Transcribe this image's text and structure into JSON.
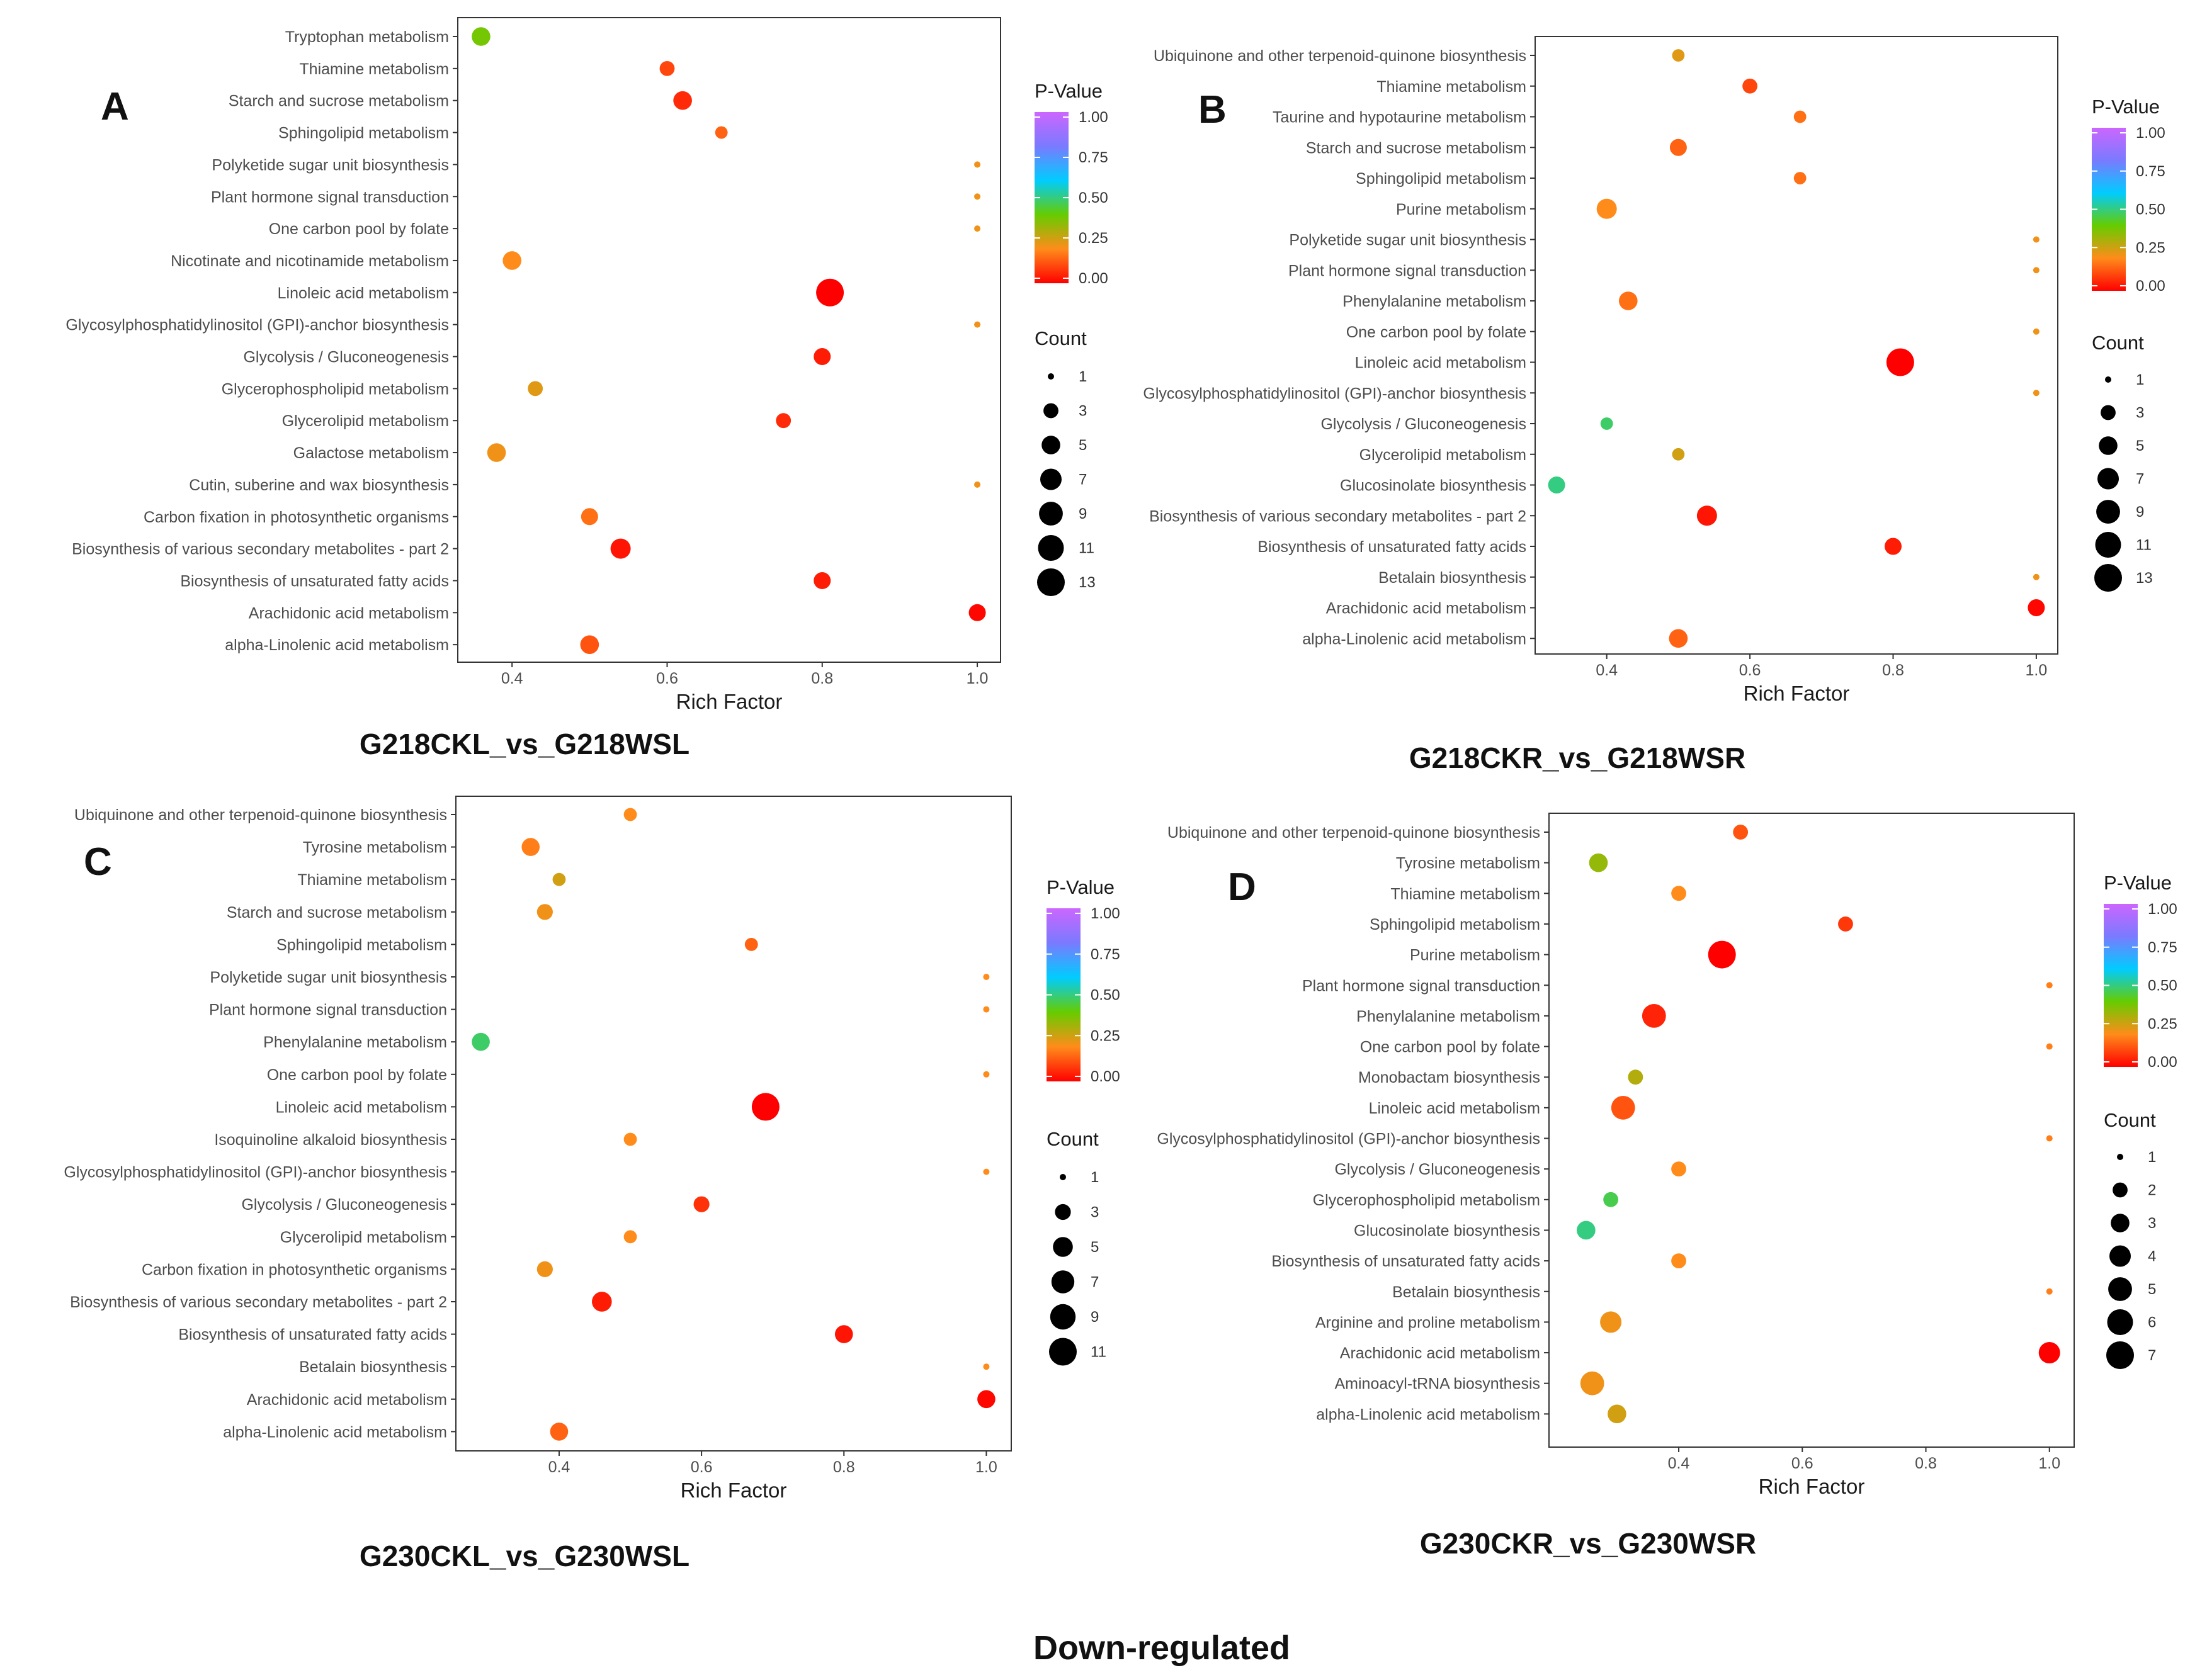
{
  "footer": "Down-regulated",
  "colorscale": {
    "stops": [
      "#ff0000",
      "#ff8c1a",
      "#66cc00",
      "#00ccff",
      "#7a7aff",
      "#cc66ff"
    ]
  },
  "chart_data": [
    {
      "panel_label": "A",
      "type": "scatter",
      "caption": "G218CKL_vs_G218WSL",
      "xlabel": "Rich Factor",
      "xticks": [
        0.4,
        0.6,
        0.8,
        1.0
      ],
      "xtick_labels": [
        "0.4",
        "0.6",
        "0.8",
        "1.0"
      ],
      "xlim": [
        0.33,
        1.03
      ],
      "color_legend": {
        "title": "P-Value",
        "ticks": [
          "1.00",
          "0.75",
          "0.50",
          "0.25",
          "0.00"
        ]
      },
      "size_legend": {
        "title": "Count",
        "values": [
          1,
          3,
          5,
          7,
          9,
          11,
          13
        ]
      },
      "points": [
        {
          "pathway": "Tryptophan metabolism",
          "rich_factor": 0.36,
          "count": 5,
          "p_value": 0.38
        },
        {
          "pathway": "Thiamine metabolism",
          "rich_factor": 0.6,
          "count": 3,
          "p_value": 0.1
        },
        {
          "pathway": "Starch and sucrose metabolism",
          "rich_factor": 0.62,
          "count": 5,
          "p_value": 0.06
        },
        {
          "pathway": "Sphingolipid metabolism",
          "rich_factor": 0.67,
          "count": 2,
          "p_value": 0.14
        },
        {
          "pathway": "Polyketide sugar unit biosynthesis",
          "rich_factor": 1.0,
          "count": 1,
          "p_value": 0.22
        },
        {
          "pathway": "Plant hormone signal transduction",
          "rich_factor": 1.0,
          "count": 1,
          "p_value": 0.22
        },
        {
          "pathway": "One carbon pool by folate",
          "rich_factor": 1.0,
          "count": 1,
          "p_value": 0.22
        },
        {
          "pathway": "Nicotinate and nicotinamide metabolism",
          "rich_factor": 0.4,
          "count": 5,
          "p_value": 0.2
        },
        {
          "pathway": "Linoleic acid metabolism",
          "rich_factor": 0.81,
          "count": 13,
          "p_value": 0.0
        },
        {
          "pathway": "Glycosylphosphatidylinositol (GPI)-anchor biosynthesis",
          "rich_factor": 1.0,
          "count": 1,
          "p_value": 0.22
        },
        {
          "pathway": "Glycolysis / Gluconeogenesis",
          "rich_factor": 0.8,
          "count": 4,
          "p_value": 0.04
        },
        {
          "pathway": "Glycerophospholipid metabolism",
          "rich_factor": 0.43,
          "count": 3,
          "p_value": 0.24
        },
        {
          "pathway": "Glycerolipid metabolism",
          "rich_factor": 0.75,
          "count": 3,
          "p_value": 0.06
        },
        {
          "pathway": "Galactose metabolism",
          "rich_factor": 0.38,
          "count": 5,
          "p_value": 0.22
        },
        {
          "pathway": "Cutin, suberine and wax biosynthesis",
          "rich_factor": 1.0,
          "count": 1,
          "p_value": 0.22
        },
        {
          "pathway": "Carbon fixation in photosynthetic organisms",
          "rich_factor": 0.5,
          "count": 4,
          "p_value": 0.16
        },
        {
          "pathway": "Biosynthesis of various secondary metabolites - part 2",
          "rich_factor": 0.54,
          "count": 6,
          "p_value": 0.03
        },
        {
          "pathway": "Biosynthesis of unsaturated fatty acids",
          "rich_factor": 0.8,
          "count": 4,
          "p_value": 0.04
        },
        {
          "pathway": "Arachidonic acid metabolism",
          "rich_factor": 1.0,
          "count": 4,
          "p_value": 0.01
        },
        {
          "pathway": "alpha-Linolenic acid metabolism",
          "rich_factor": 0.5,
          "count": 5,
          "p_value": 0.12
        }
      ]
    },
    {
      "panel_label": "B",
      "type": "scatter",
      "caption": "G218CKR_vs_G218WSR",
      "xlabel": "Rich Factor",
      "xticks": [
        0.4,
        0.6,
        0.8,
        1.0
      ],
      "xtick_labels": [
        "0.4",
        "0.6",
        "0.8",
        "1.0"
      ],
      "xlim": [
        0.3,
        1.03
      ],
      "color_legend": {
        "title": "P-Value",
        "ticks": [
          "1.00",
          "0.75",
          "0.50",
          "0.25",
          "0.00"
        ]
      },
      "size_legend": {
        "title": "Count",
        "values": [
          1,
          3,
          5,
          7,
          9,
          11,
          13
        ]
      },
      "points": [
        {
          "pathway": "Ubiquinone and other terpenoid-quinone biosynthesis",
          "rich_factor": 0.5,
          "count": 2,
          "p_value": 0.24
        },
        {
          "pathway": "Thiamine metabolism",
          "rich_factor": 0.6,
          "count": 3,
          "p_value": 0.1
        },
        {
          "pathway": "Taurine and hypotaurine metabolism",
          "rich_factor": 0.67,
          "count": 2,
          "p_value": 0.16
        },
        {
          "pathway": "Starch and sucrose metabolism",
          "rich_factor": 0.5,
          "count": 4,
          "p_value": 0.14
        },
        {
          "pathway": "Sphingolipid metabolism",
          "rich_factor": 0.67,
          "count": 2,
          "p_value": 0.16
        },
        {
          "pathway": "Purine metabolism",
          "rich_factor": 0.4,
          "count": 6,
          "p_value": 0.2
        },
        {
          "pathway": "Polyketide sugar unit biosynthesis",
          "rich_factor": 1.0,
          "count": 1,
          "p_value": 0.22
        },
        {
          "pathway": "Plant hormone signal transduction",
          "rich_factor": 1.0,
          "count": 1,
          "p_value": 0.22
        },
        {
          "pathway": "Phenylalanine metabolism",
          "rich_factor": 0.43,
          "count": 5,
          "p_value": 0.16
        },
        {
          "pathway": "One carbon pool by folate",
          "rich_factor": 1.0,
          "count": 1,
          "p_value": 0.22
        },
        {
          "pathway": "Linoleic acid metabolism",
          "rich_factor": 0.81,
          "count": 13,
          "p_value": 0.0
        },
        {
          "pathway": "Glycosylphosphatidylinositol (GPI)-anchor biosynthesis",
          "rich_factor": 1.0,
          "count": 1,
          "p_value": 0.22
        },
        {
          "pathway": "Glycolysis / Gluconeogenesis",
          "rich_factor": 0.4,
          "count": 2,
          "p_value": 0.48
        },
        {
          "pathway": "Glycerolipid metabolism",
          "rich_factor": 0.5,
          "count": 2,
          "p_value": 0.26
        },
        {
          "pathway": "Glucosinolate biosynthesis",
          "rich_factor": 0.33,
          "count": 4,
          "p_value": 0.5
        },
        {
          "pathway": "Biosynthesis of various secondary metabolites - part 2",
          "rich_factor": 0.54,
          "count": 6,
          "p_value": 0.03
        },
        {
          "pathway": "Biosynthesis of unsaturated fatty acids",
          "rich_factor": 0.8,
          "count": 4,
          "p_value": 0.04
        },
        {
          "pathway": "Betalain biosynthesis",
          "rich_factor": 1.0,
          "count": 1,
          "p_value": 0.22
        },
        {
          "pathway": "Arachidonic acid metabolism",
          "rich_factor": 1.0,
          "count": 4,
          "p_value": 0.01
        },
        {
          "pathway": "alpha-Linolenic acid metabolism",
          "rich_factor": 0.5,
          "count": 5,
          "p_value": 0.14
        }
      ]
    },
    {
      "panel_label": "C",
      "type": "scatter",
      "caption": "G230CKL_vs_G230WSL",
      "xlabel": "Rich Factor",
      "xticks": [
        0.4,
        0.6,
        0.8,
        1.0
      ],
      "xtick_labels": [
        "0.4",
        "0.6",
        "0.8",
        "1.0"
      ],
      "xlim": [
        0.255,
        1.035
      ],
      "color_legend": {
        "title": "P-Value",
        "ticks": [
          "1.00",
          "0.75",
          "0.50",
          "0.25",
          "0.00"
        ]
      },
      "size_legend": {
        "title": "Count",
        "values": [
          1,
          3,
          5,
          7,
          9,
          11
        ]
      },
      "points": [
        {
          "pathway": "Ubiquinone and other terpenoid-quinone biosynthesis",
          "rich_factor": 0.5,
          "count": 2,
          "p_value": 0.2
        },
        {
          "pathway": "Tyrosine metabolism",
          "rich_factor": 0.36,
          "count": 4,
          "p_value": 0.18
        },
        {
          "pathway": "Thiamine metabolism",
          "rich_factor": 0.4,
          "count": 2,
          "p_value": 0.26
        },
        {
          "pathway": "Starch and sucrose metabolism",
          "rich_factor": 0.38,
          "count": 3,
          "p_value": 0.22
        },
        {
          "pathway": "Sphingolipid metabolism",
          "rich_factor": 0.67,
          "count": 2,
          "p_value": 0.14
        },
        {
          "pathway": "Polyketide sugar unit biosynthesis",
          "rich_factor": 1.0,
          "count": 1,
          "p_value": 0.2
        },
        {
          "pathway": "Plant hormone signal transduction",
          "rich_factor": 1.0,
          "count": 1,
          "p_value": 0.2
        },
        {
          "pathway": "Phenylalanine metabolism",
          "rich_factor": 0.29,
          "count": 4,
          "p_value": 0.48
        },
        {
          "pathway": "One carbon pool by folate",
          "rich_factor": 1.0,
          "count": 1,
          "p_value": 0.2
        },
        {
          "pathway": "Linoleic acid metabolism",
          "rich_factor": 0.69,
          "count": 11,
          "p_value": 0.0
        },
        {
          "pathway": "Isoquinoline alkaloid biosynthesis",
          "rich_factor": 0.5,
          "count": 2,
          "p_value": 0.2
        },
        {
          "pathway": "Glycosylphosphatidylinositol (GPI)-anchor biosynthesis",
          "rich_factor": 1.0,
          "count": 1,
          "p_value": 0.2
        },
        {
          "pathway": "Glycolysis / Gluconeogenesis",
          "rich_factor": 0.6,
          "count": 3,
          "p_value": 0.07
        },
        {
          "pathway": "Glycerolipid metabolism",
          "rich_factor": 0.5,
          "count": 2,
          "p_value": 0.2
        },
        {
          "pathway": "Carbon fixation in photosynthetic organisms",
          "rich_factor": 0.38,
          "count": 3,
          "p_value": 0.22
        },
        {
          "pathway": "Biosynthesis of various secondary metabolites - part 2",
          "rich_factor": 0.46,
          "count": 5,
          "p_value": 0.04
        },
        {
          "pathway": "Biosynthesis of unsaturated fatty acids",
          "rich_factor": 0.8,
          "count": 4,
          "p_value": 0.03
        },
        {
          "pathway": "Betalain biosynthesis",
          "rich_factor": 1.0,
          "count": 1,
          "p_value": 0.2
        },
        {
          "pathway": "Arachidonic acid metabolism",
          "rich_factor": 1.0,
          "count": 4,
          "p_value": 0.01
        },
        {
          "pathway": "alpha-Linolenic acid metabolism",
          "rich_factor": 0.4,
          "count": 4,
          "p_value": 0.14
        }
      ]
    },
    {
      "panel_label": "D",
      "type": "scatter",
      "caption": "G230CKR_vs_G230WSR",
      "xlabel": "Rich Factor",
      "xticks": [
        0.4,
        0.6,
        0.8,
        1.0
      ],
      "xtick_labels": [
        "0.4",
        "0.6",
        "0.8",
        "1.0"
      ],
      "xlim": [
        0.19,
        1.04
      ],
      "color_legend": {
        "title": "P-Value",
        "ticks": [
          "1.00",
          "0.75",
          "0.50",
          "0.25",
          "0.00"
        ]
      },
      "size_legend": {
        "title": "Count",
        "values": [
          1,
          2,
          3,
          4,
          5,
          6,
          7
        ]
      },
      "points": [
        {
          "pathway": "Ubiquinone and other terpenoid-quinone biosynthesis",
          "rich_factor": 0.5,
          "count": 2,
          "p_value": 0.12
        },
        {
          "pathway": "Tyrosine metabolism",
          "rich_factor": 0.27,
          "count": 3,
          "p_value": 0.34
        },
        {
          "pathway": "Thiamine metabolism",
          "rich_factor": 0.4,
          "count": 2,
          "p_value": 0.2
        },
        {
          "pathway": "Sphingolipid metabolism",
          "rich_factor": 0.67,
          "count": 2,
          "p_value": 0.08
        },
        {
          "pathway": "Purine metabolism",
          "rich_factor": 0.47,
          "count": 7,
          "p_value": 0.0
        },
        {
          "pathway": "Plant hormone signal transduction",
          "rich_factor": 1.0,
          "count": 1,
          "p_value": 0.18
        },
        {
          "pathway": "Phenylalanine metabolism",
          "rich_factor": 0.36,
          "count": 5,
          "p_value": 0.05
        },
        {
          "pathway": "One carbon pool by folate",
          "rich_factor": 1.0,
          "count": 1,
          "p_value": 0.18
        },
        {
          "pathway": "Monobactam biosynthesis",
          "rich_factor": 0.33,
          "count": 2,
          "p_value": 0.3
        },
        {
          "pathway": "Linoleic acid metabolism",
          "rich_factor": 0.31,
          "count": 5,
          "p_value": 0.12
        },
        {
          "pathway": "Glycosylphosphatidylinositol (GPI)-anchor biosynthesis",
          "rich_factor": 1.0,
          "count": 1,
          "p_value": 0.18
        },
        {
          "pathway": "Glycolysis / Gluconeogenesis",
          "rich_factor": 0.4,
          "count": 2,
          "p_value": 0.2
        },
        {
          "pathway": "Glycerophospholipid metabolism",
          "rich_factor": 0.29,
          "count": 2,
          "p_value": 0.46
        },
        {
          "pathway": "Glucosinolate biosynthesis",
          "rich_factor": 0.25,
          "count": 3,
          "p_value": 0.5
        },
        {
          "pathway": "Biosynthesis of unsaturated fatty acids",
          "rich_factor": 0.4,
          "count": 2,
          "p_value": 0.2
        },
        {
          "pathway": "Betalain biosynthesis",
          "rich_factor": 1.0,
          "count": 1,
          "p_value": 0.18
        },
        {
          "pathway": "Arginine and proline metabolism",
          "rich_factor": 0.29,
          "count": 4,
          "p_value": 0.22
        },
        {
          "pathway": "Arachidonic acid metabolism",
          "rich_factor": 1.0,
          "count": 4,
          "p_value": 0.0
        },
        {
          "pathway": "Aminoacyl-tRNA biosynthesis",
          "rich_factor": 0.26,
          "count": 5,
          "p_value": 0.22
        },
        {
          "pathway": "alpha-Linolenic acid metabolism",
          "rich_factor": 0.3,
          "count": 3,
          "p_value": 0.26
        }
      ]
    }
  ]
}
